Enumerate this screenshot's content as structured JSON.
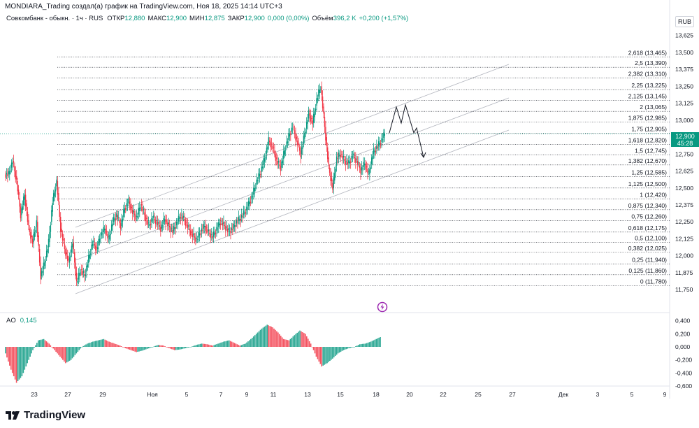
{
  "header": {
    "title": "MONDIARA_Trading создал(а) график на TradingView.com, Ноя 18, 2025 14:14 UTC+3"
  },
  "legend": {
    "symbol": "Совкомбанк - обыкн. · 1ч · RUS",
    "open_label": "ОТКР",
    "open": "12,880",
    "high_label": "МАКС",
    "high": "12,900",
    "low_label": "МИН",
    "low": "12,875",
    "close_label": "ЗАКР",
    "close": "12,900",
    "change": "0,000 (0,00%)",
    "volume_label": "Объём",
    "volume": "396,2 K",
    "volume_change": "+0,200 (+1,57%)"
  },
  "currency": "RUB",
  "price_tag": {
    "price": "12,900",
    "countdown": "45:28"
  },
  "indicator": {
    "name": "AO",
    "value": "0,145"
  },
  "brand": "TradingView",
  "colors": {
    "up": "#089981",
    "down": "#f23645",
    "fib_line": "#131722",
    "channel": "#b2b5be"
  },
  "chart_data": [
    {
      "type": "candlestick",
      "title": "Совкомбанк - обыкн. · 1ч · RUS",
      "y_axis_ticks": [
        "13,625",
        "13,500",
        "13,375",
        "13,250",
        "13,125",
        "13,000",
        "12,875",
        "12,750",
        "12,625",
        "12,500",
        "12,375",
        "12,250",
        "12,125",
        "12,000",
        "11,875",
        "11,750"
      ],
      "x_axis_ticks": [
        "23",
        "27",
        "29",
        "Ноя",
        "5",
        "7",
        "9",
        "11",
        "13",
        "15",
        "18",
        "20",
        "22",
        "25",
        "27",
        "Дек",
        "3",
        "5",
        "9"
      ],
      "ylim": [
        11.72,
        13.68
      ],
      "fib_levels": [
        {
          "level": "2,618",
          "price": 13.465,
          "label": "2,618 (13,465)"
        },
        {
          "level": "2,5",
          "price": 13.39,
          "label": "2,5 (13,390)"
        },
        {
          "level": "2,382",
          "price": 13.31,
          "label": "2,382 (13,310)"
        },
        {
          "level": "2,25",
          "price": 13.225,
          "label": "2,25 (13,225)"
        },
        {
          "level": "2,125",
          "price": 13.145,
          "label": "2,125 (13,145)"
        },
        {
          "level": "2",
          "price": 13.065,
          "label": "2 (13,065)"
        },
        {
          "level": "1,875",
          "price": 12.985,
          "label": "1,875 (12,985)"
        },
        {
          "level": "1,75",
          "price": 12.905,
          "label": "1,75 (12,905)"
        },
        {
          "level": "1,618",
          "price": 12.82,
          "label": "1,618 (12,820)"
        },
        {
          "level": "1,5",
          "price": 12.745,
          "label": "1,5 (12,745)"
        },
        {
          "level": "1,382",
          "price": 12.67,
          "label": "1,382 (12,670)"
        },
        {
          "level": "1,25",
          "price": 12.585,
          "label": "1,25 (12,585)"
        },
        {
          "level": "1,125",
          "price": 12.5,
          "label": "1,125 (12,500)"
        },
        {
          "level": "1",
          "price": 12.42,
          "label": "1 (12,420)"
        },
        {
          "level": "0,875",
          "price": 12.34,
          "label": "0,875 (12,340)"
        },
        {
          "level": "0,75",
          "price": 12.26,
          "label": "0,75 (12,260)"
        },
        {
          "level": "0,618",
          "price": 12.175,
          "label": "0,618 (12,175)"
        },
        {
          "level": "0,5",
          "price": 12.1,
          "label": "0,5 (12,100)"
        },
        {
          "level": "0,382",
          "price": 12.025,
          "label": "0,382 (12,025)"
        },
        {
          "level": "0,25",
          "price": 11.94,
          "label": "0,25 (11,940)"
        },
        {
          "level": "0,125",
          "price": 11.86,
          "label": "0,125 (11,860)"
        },
        {
          "level": "0",
          "price": 11.78,
          "label": "0 (11,780)"
        }
      ],
      "price_path": [
        12.6,
        12.7,
        12.55,
        12.3,
        12.45,
        12.2,
        12.1,
        12.25,
        11.85,
        11.95,
        12.1,
        12.4,
        12.55,
        12.2,
        12.05,
        11.95,
        12.1,
        11.8,
        11.9,
        11.85,
        11.98,
        12.1,
        12.05,
        12.15,
        12.2,
        12.12,
        12.25,
        12.3,
        12.22,
        12.35,
        12.4,
        12.32,
        12.28,
        12.38,
        12.3,
        12.22,
        12.28,
        12.25,
        12.2,
        12.27,
        12.22,
        12.18,
        12.24,
        12.3,
        12.26,
        12.2,
        12.15,
        12.12,
        12.18,
        12.22,
        12.17,
        12.14,
        12.2,
        12.25,
        12.22,
        12.18,
        12.2,
        12.25,
        12.28,
        12.32,
        12.38,
        12.45,
        12.55,
        12.62,
        12.72,
        12.85,
        12.8,
        12.7,
        12.65,
        12.78,
        12.88,
        12.95,
        12.85,
        12.75,
        12.9,
        13.05,
        12.98,
        13.15,
        13.25,
        12.95,
        12.65,
        12.5,
        12.72,
        12.75,
        12.7,
        12.68,
        12.74,
        12.7,
        12.63,
        12.68,
        12.6,
        12.75,
        12.8,
        12.84,
        12.9
      ],
      "ao_ylim": [
        -0.6,
        0.45
      ],
      "ao_ticks": [
        "0,400",
        "0,200",
        "0,000",
        "-0,200",
        "-0,400",
        "-0,600"
      ],
      "ao_path": [
        -0.1,
        -0.35,
        -0.55,
        -0.45,
        -0.25,
        -0.05,
        0.1,
        0.12,
        0.05,
        -0.05,
        -0.15,
        -0.25,
        -0.2,
        -0.1,
        0.0,
        0.05,
        0.08,
        0.1,
        0.12,
        0.08,
        0.05,
        0.02,
        -0.02,
        -0.05,
        -0.08,
        -0.06,
        -0.03,
        0.0,
        0.03,
        0.02,
        -0.02,
        -0.05,
        -0.04,
        -0.02,
        0.0,
        0.03,
        0.05,
        0.04,
        0.02,
        0.05,
        0.08,
        0.1,
        0.06,
        0.02,
        0.05,
        0.12,
        0.2,
        0.28,
        0.34,
        0.3,
        0.22,
        0.12,
        0.1,
        0.18,
        0.25,
        0.2,
        0.05,
        -0.15,
        -0.3,
        -0.25,
        -0.18,
        -0.1,
        -0.05,
        -0.02,
        0.0,
        0.04,
        0.05,
        0.08,
        0.12,
        0.16
      ]
    }
  ]
}
